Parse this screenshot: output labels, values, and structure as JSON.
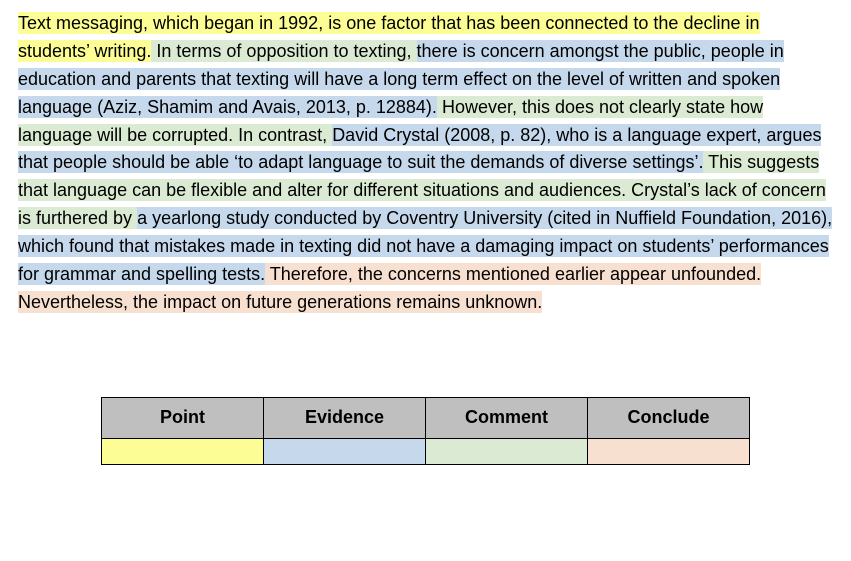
{
  "colors": {
    "point": "#fdfd96",
    "evidence": "#c6d9ec",
    "comment": "#dbead3",
    "conclude": "#f8e0d0",
    "header_bg": "#bfbfbf",
    "text": "#000000"
  },
  "paragraph": {
    "segments": [
      {
        "role": "point",
        "text": "Text messaging, which began in 1992, is one factor that has been connected to the decline in students’ writing."
      },
      {
        "role": "comment",
        "text": " In terms of opposition to texting, "
      },
      {
        "role": "evidence",
        "text": "there is concern amongst the public, people in education and parents that texting will have a long term effect on the level of written and spoken language (Aziz, Shamim and Avais, 2013, p. 12884)."
      },
      {
        "role": "comment",
        "text": " However, this does not clearly state how language will be corrupted. In contrast, "
      },
      {
        "role": "evidence",
        "text": "David Crystal (2008, p. 82), who is a language expert, argues that people should be able ‘to adapt language to suit the demands of diverse settings’."
      },
      {
        "role": "comment",
        "text": " This suggests that language can be flexible and alter for different situations and audiences. Crystal’s lack of concern is furthered by "
      },
      {
        "role": "evidence",
        "text": "a yearlong study conducted by Coventry University (cited in Nuffield Foundation, 2016), which found that mistakes made in texting did not have a damaging impact on students’ performances for grammar and spelling tests."
      },
      {
        "role": "conclude",
        "text": " Therefore, the concerns mentioned earlier appear unfounded. Nevertheless, the impact on future generations remains unknown."
      }
    ]
  },
  "legend": {
    "headers": [
      "Point",
      "Evidence",
      "Comment",
      "Conclude"
    ],
    "cell_colors": [
      "#fdfd96",
      "#c6d9ec",
      "#dbead3",
      "#f8e0d0"
    ]
  }
}
